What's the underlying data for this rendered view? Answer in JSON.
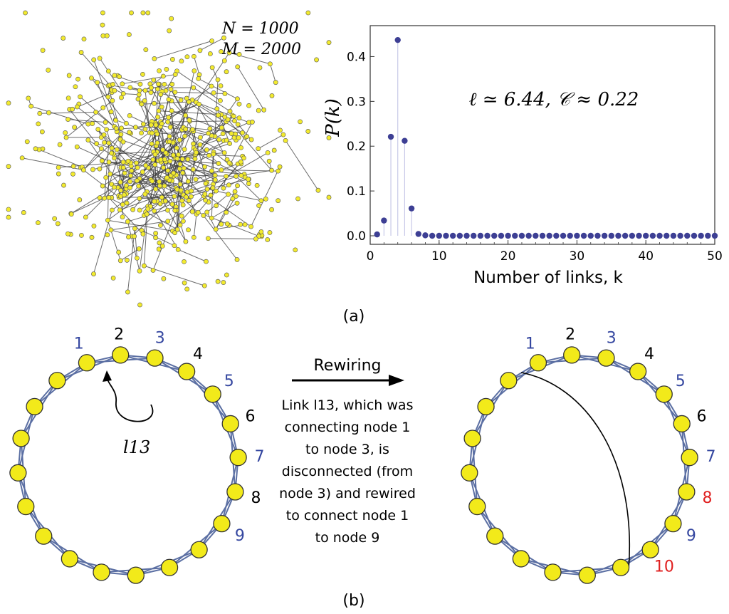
{
  "panel_a": {
    "network": {
      "n_label": "N = 1000",
      "m_label": "M = 2000",
      "node_color": "#f2ea2e",
      "edge_color": "#3a3a3a"
    },
    "degree_chart": {
      "chart_data": {
        "type": "scatter",
        "style": "stem",
        "x": [
          1,
          2,
          3,
          4,
          5,
          6,
          7,
          8,
          9,
          10,
          11,
          12,
          13,
          14,
          15,
          16,
          17,
          18,
          19,
          20,
          21,
          22,
          23,
          24,
          25,
          26,
          27,
          28,
          29,
          30,
          31,
          32,
          33,
          34,
          35,
          36,
          37,
          38,
          39,
          40,
          41,
          42,
          43,
          44,
          45,
          46,
          47,
          48,
          49,
          50
        ],
        "y": [
          0.003,
          0.034,
          0.221,
          0.437,
          0.212,
          0.061,
          0.004,
          0.001,
          0,
          0,
          0,
          0,
          0,
          0,
          0,
          0,
          0,
          0,
          0,
          0,
          0,
          0,
          0,
          0,
          0,
          0,
          0,
          0,
          0,
          0,
          0,
          0,
          0,
          0,
          0,
          0,
          0,
          0,
          0,
          0,
          0,
          0,
          0,
          0,
          0,
          0,
          0,
          0,
          0,
          0
        ],
        "xlim": [
          0,
          50
        ],
        "ylim": [
          0,
          0.45
        ],
        "xticks": [
          "0",
          "10",
          "20",
          "30",
          "40",
          "50"
        ],
        "yticks": [
          "0.0",
          "0.1",
          "0.2",
          "0.3",
          "0.4"
        ],
        "xlabel": "Number of links, k",
        "ylabel": "P(k)",
        "annotation": "ℓ ≃ 6.44, 𝒞 ≈ 0.22",
        "grid": false,
        "marker_color": "#3d3f94",
        "stem_color": "#c8c9e8"
      }
    },
    "caption": "(a)"
  },
  "panel_b": {
    "caption": "(b)",
    "ring_color": "#5b6fa3",
    "node_fill": "#f2ea1a",
    "left_ring": {
      "labels": [
        {
          "text": "1",
          "color": "#3547a0"
        },
        {
          "text": "2",
          "color": "#000000"
        },
        {
          "text": "3",
          "color": "#3547a0"
        },
        {
          "text": "4",
          "color": "#000000"
        },
        {
          "text": "5",
          "color": "#3547a0"
        },
        {
          "text": "6",
          "color": "#000000"
        },
        {
          "text": "7",
          "color": "#3547a0"
        },
        {
          "text": "8",
          "color": "#000000"
        },
        {
          "text": "9",
          "color": "#3547a0"
        }
      ],
      "link_label": "l13"
    },
    "middle": {
      "rewiring_label": "Rewiring",
      "description_lines": [
        "Link  l13, which was",
        "connecting node 1",
        "to node 3, is",
        "disconnected (from",
        "node 3) and rewired",
        "to connect node 1",
        "to node 9"
      ]
    },
    "right_ring": {
      "labels": [
        {
          "text": "1",
          "color": "#3547a0"
        },
        {
          "text": "2",
          "color": "#000000"
        },
        {
          "text": "3",
          "color": "#3547a0"
        },
        {
          "text": "4",
          "color": "#000000"
        },
        {
          "text": "5",
          "color": "#3547a0"
        },
        {
          "text": "6",
          "color": "#000000"
        },
        {
          "text": "7",
          "color": "#3547a0"
        },
        {
          "text": "8",
          "color": "#e02020"
        },
        {
          "text": "9",
          "color": "#3547a0"
        },
        {
          "text": "10",
          "color": "#e02020"
        }
      ]
    }
  }
}
